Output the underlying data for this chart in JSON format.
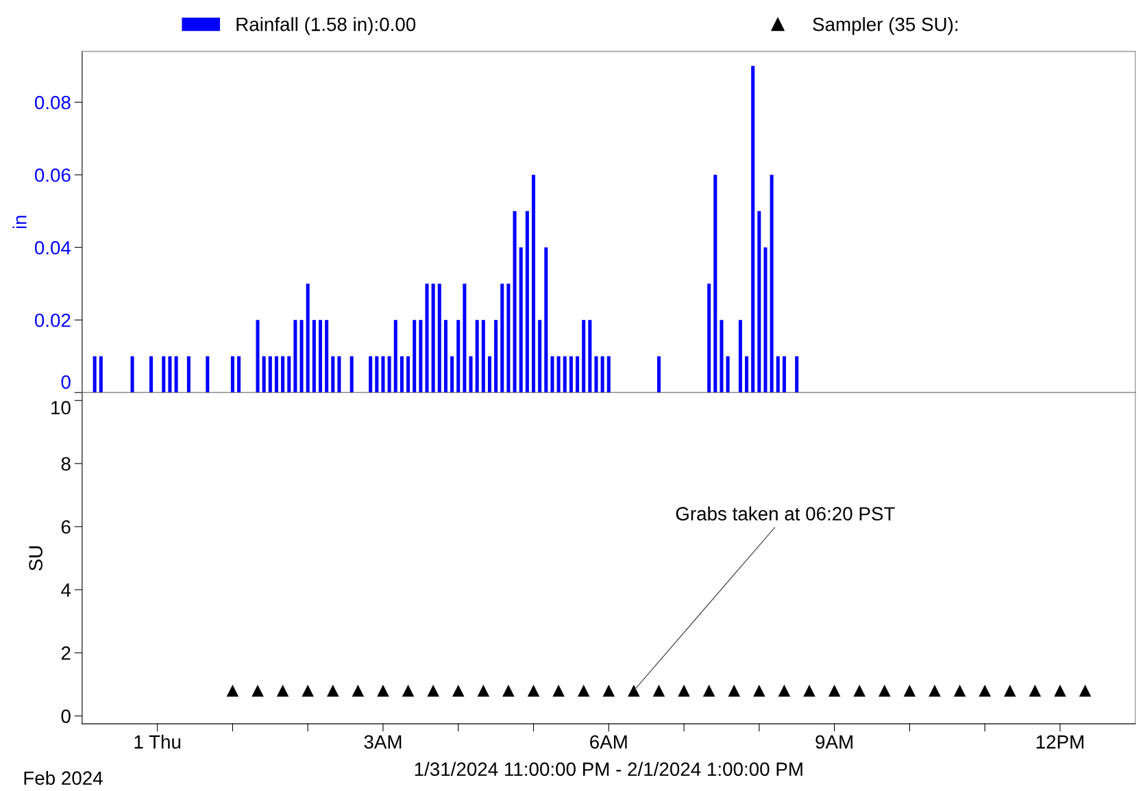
{
  "chart_data": [
    {
      "type": "bar",
      "ylabel": "in",
      "legend": "top",
      "tick_labels": "y",
      "grid": false,
      "xlim": [
        "2024-01-31T23:00",
        "2024-02-01T13:00"
      ],
      "ylim": [
        0,
        0.094
      ],
      "yticks": [
        0,
        0.02,
        0.04,
        0.06,
        0.08
      ],
      "series": [
        {
          "name": "Rainfall (1.58 in):0.00",
          "color": "#0000ff",
          "x": [
            "2024-01-31T23:10",
            "2024-01-31T23:15",
            "2024-01-31T23:40",
            "2024-01-31T23:55",
            "2024-02-01T00:05",
            "2024-02-01T00:10",
            "2024-02-01T00:15",
            "2024-02-01T00:25",
            "2024-02-01T00:40",
            "2024-02-01T01:00",
            "2024-02-01T01:05",
            "2024-02-01T01:20",
            "2024-02-01T01:25",
            "2024-02-01T01:30",
            "2024-02-01T01:35",
            "2024-02-01T01:40",
            "2024-02-01T01:45",
            "2024-02-01T01:50",
            "2024-02-01T01:55",
            "2024-02-01T02:00",
            "2024-02-01T02:05",
            "2024-02-01T02:10",
            "2024-02-01T02:15",
            "2024-02-01T02:20",
            "2024-02-01T02:25",
            "2024-02-01T02:35",
            "2024-02-01T02:50",
            "2024-02-01T02:55",
            "2024-02-01T03:00",
            "2024-02-01T03:05",
            "2024-02-01T03:10",
            "2024-02-01T03:15",
            "2024-02-01T03:20",
            "2024-02-01T03:25",
            "2024-02-01T03:30",
            "2024-02-01T03:35",
            "2024-02-01T03:40",
            "2024-02-01T03:45",
            "2024-02-01T03:50",
            "2024-02-01T03:55",
            "2024-02-01T04:00",
            "2024-02-01T04:05",
            "2024-02-01T04:10",
            "2024-02-01T04:15",
            "2024-02-01T04:20",
            "2024-02-01T04:25",
            "2024-02-01T04:30",
            "2024-02-01T04:35",
            "2024-02-01T04:40",
            "2024-02-01T04:45",
            "2024-02-01T04:50",
            "2024-02-01T04:55",
            "2024-02-01T05:00",
            "2024-02-01T05:05",
            "2024-02-01T05:10",
            "2024-02-01T05:15",
            "2024-02-01T05:20",
            "2024-02-01T05:25",
            "2024-02-01T05:30",
            "2024-02-01T05:35",
            "2024-02-01T05:40",
            "2024-02-01T05:45",
            "2024-02-01T05:50",
            "2024-02-01T05:55",
            "2024-02-01T06:00",
            "2024-02-01T06:40",
            "2024-02-01T07:20",
            "2024-02-01T07:25",
            "2024-02-01T07:30",
            "2024-02-01T07:35",
            "2024-02-01T07:45",
            "2024-02-01T07:50",
            "2024-02-01T07:55",
            "2024-02-01T08:00",
            "2024-02-01T08:05",
            "2024-02-01T08:10",
            "2024-02-01T08:15",
            "2024-02-01T08:20",
            "2024-02-01T08:30"
          ],
          "values": [
            0.01,
            0.01,
            0.01,
            0.01,
            0.01,
            0.01,
            0.01,
            0.01,
            0.01,
            0.01,
            0.01,
            0.02,
            0.01,
            0.01,
            0.01,
            0.01,
            0.01,
            0.02,
            0.02,
            0.03,
            0.02,
            0.02,
            0.02,
            0.01,
            0.01,
            0.01,
            0.01,
            0.01,
            0.01,
            0.01,
            0.02,
            0.01,
            0.01,
            0.02,
            0.02,
            0.03,
            0.03,
            0.03,
            0.02,
            0.01,
            0.02,
            0.03,
            0.01,
            0.02,
            0.02,
            0.01,
            0.02,
            0.03,
            0.03,
            0.05,
            0.04,
            0.05,
            0.06,
            0.02,
            0.04,
            0.01,
            0.01,
            0.01,
            0.01,
            0.01,
            0.02,
            0.02,
            0.01,
            0.01,
            0.01,
            0.01,
            0.03,
            0.06,
            0.02,
            0.01,
            0.02,
            0.01,
            0.09,
            0.05,
            0.04,
            0.06,
            0.01,
            0.01,
            0.01
          ]
        }
      ]
    },
    {
      "type": "scatter",
      "ylabel": "SU",
      "xlabel": "1/31/2024 11:00:00 PM - 2/1/2024 1:00:00 PM",
      "legend": "top",
      "grid": false,
      "marker": "triangle",
      "xlim": [
        "2024-01-31T23:00",
        "2024-02-01T13:00"
      ],
      "xticks": [
        {
          "value": "2024-02-01T00:00",
          "label": "1 Thu"
        },
        {
          "value": "2024-02-01T01:00",
          "label": null
        },
        {
          "value": "2024-02-01T02:00",
          "label": null
        },
        {
          "value": "2024-02-01T03:00",
          "label": "3AM"
        },
        {
          "value": "2024-02-01T04:00",
          "label": null
        },
        {
          "value": "2024-02-01T05:00",
          "label": null
        },
        {
          "value": "2024-02-01T06:00",
          "label": "6AM"
        },
        {
          "value": "2024-02-01T07:00",
          "label": null
        },
        {
          "value": "2024-02-01T08:00",
          "label": null
        },
        {
          "value": "2024-02-01T09:00",
          "label": "9AM"
        },
        {
          "value": "2024-02-01T10:00",
          "label": null
        },
        {
          "value": "2024-02-01T11:00",
          "label": null
        },
        {
          "value": "2024-02-01T12:00",
          "label": "12PM"
        }
      ],
      "ylim": [
        -0.25,
        10.25
      ],
      "yticks": [
        0,
        2,
        4,
        6,
        8,
        10
      ],
      "annotations": [
        {
          "text": "Grabs taken at 06:20 PST",
          "x": "2024-02-01T06:20",
          "y": 0.8
        },
        "Feb 2024"
      ],
      "series": [
        {
          "name": "Sampler (35 SU):",
          "color": "#000000",
          "x": [
            "2024-02-01T01:00",
            "2024-02-01T01:20",
            "2024-02-01T01:40",
            "2024-02-01T02:00",
            "2024-02-01T02:20",
            "2024-02-01T02:40",
            "2024-02-01T03:00",
            "2024-02-01T03:20",
            "2024-02-01T03:40",
            "2024-02-01T04:00",
            "2024-02-01T04:20",
            "2024-02-01T04:40",
            "2024-02-01T05:00",
            "2024-02-01T05:20",
            "2024-02-01T05:40",
            "2024-02-01T06:00",
            "2024-02-01T06:20",
            "2024-02-01T06:40",
            "2024-02-01T07:00",
            "2024-02-01T07:20",
            "2024-02-01T07:40",
            "2024-02-01T08:00",
            "2024-02-01T08:20",
            "2024-02-01T08:40",
            "2024-02-01T09:00",
            "2024-02-01T09:20",
            "2024-02-01T09:40",
            "2024-02-01T10:00",
            "2024-02-01T10:20",
            "2024-02-01T10:40",
            "2024-02-01T11:00",
            "2024-02-01T11:20",
            "2024-02-01T11:40",
            "2024-02-01T12:00",
            "2024-02-01T12:20"
          ],
          "values": [
            0.8,
            0.8,
            0.8,
            0.8,
            0.8,
            0.8,
            0.8,
            0.8,
            0.8,
            0.8,
            0.8,
            0.8,
            0.8,
            0.8,
            0.8,
            0.8,
            0.8,
            0.8,
            0.8,
            0.8,
            0.8,
            0.8,
            0.8,
            0.8,
            0.8,
            0.8,
            0.8,
            0.8,
            0.8,
            0.8,
            0.8,
            0.8,
            0.8,
            0.8,
            0.8
          ]
        }
      ]
    }
  ]
}
